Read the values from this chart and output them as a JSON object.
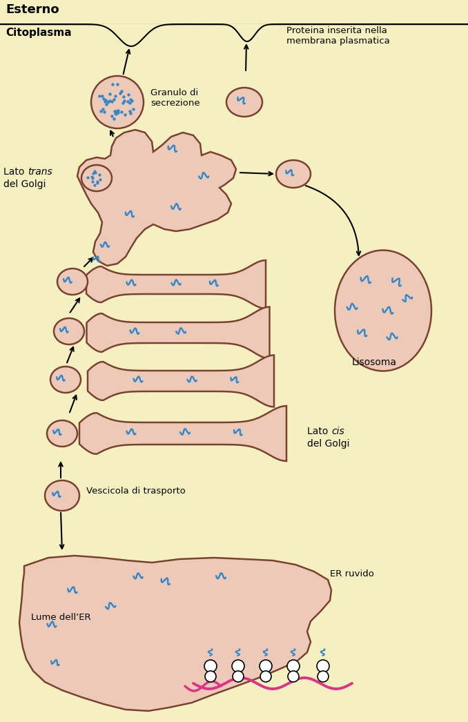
{
  "bg_color": "#F5F0C0",
  "membrane_color": "#EDCAB8",
  "membrane_edge": "#7A4030",
  "blue_protein": "#3388CC",
  "pink_protein": "#DD3388",
  "text_color": "#000000",
  "title_esterno": "Esterno",
  "title_citoplasma": "Citoplasma",
  "label_granulo": "Granulo di\nsecrezione",
  "label_lisosoma": "Lisosoma",
  "label_vescicola": "Vescicola di trasporto",
  "label_lume": "Lume dell’ER",
  "label_er": "ER ruvido",
  "label_proteina": "Proteina inserita nella\nmembrana plasmatica"
}
